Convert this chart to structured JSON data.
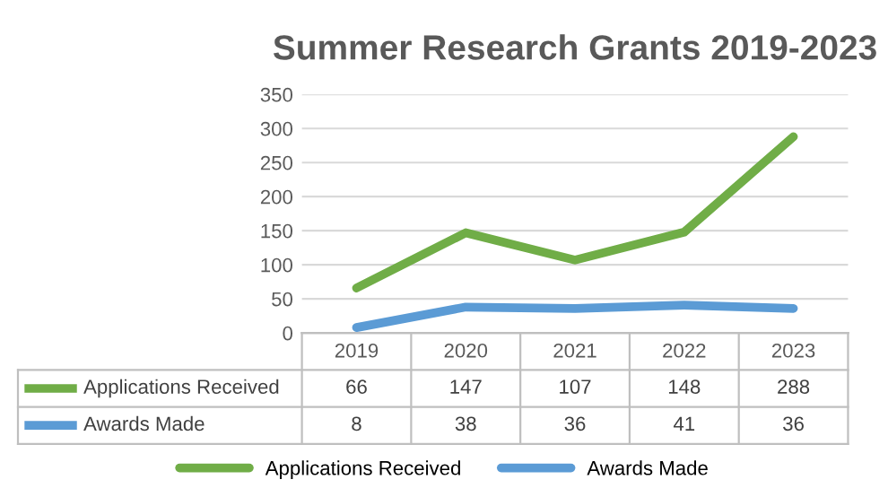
{
  "chart_data": {
    "type": "line",
    "title": "Summer Research Grants 2019-2023",
    "categories": [
      "2019",
      "2020",
      "2021",
      "2022",
      "2023"
    ],
    "series": [
      {
        "name": "Applications Received",
        "color": "#70ad47",
        "values": [
          66,
          147,
          107,
          148,
          288
        ]
      },
      {
        "name": "Awards Made",
        "color": "#5b9bd5",
        "values": [
          8,
          38,
          36,
          41,
          36
        ]
      }
    ],
    "ylim": [
      0,
      350
    ],
    "yticks": [
      0,
      50,
      100,
      150,
      200,
      250,
      300,
      350
    ],
    "grid": "y",
    "legend": "bottom",
    "data_labels": true,
    "marker": "none",
    "line_style": "solid"
  }
}
